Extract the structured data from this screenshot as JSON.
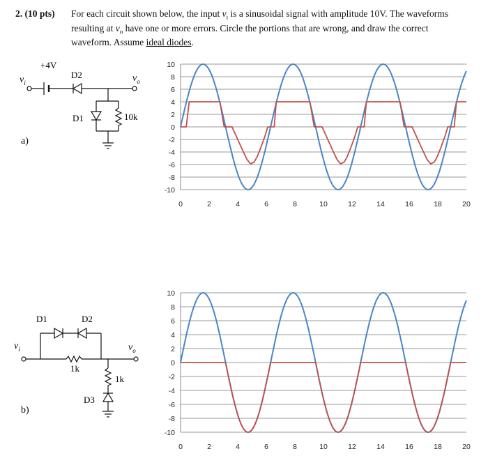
{
  "question": {
    "number": "2.",
    "points": "(10 pts)",
    "line1_a": "For each circuit shown below, the input ",
    "line1_b": " is a sinusoidal signal with amplitude 10V. The waveforms",
    "line2_a": "resulting at ",
    "line2_b": " have one or more errors.  Circle the portions that are wrong, and draw the correct",
    "line3_a": "waveform. Assume ",
    "line3_b": "ideal diodes",
    "line3_c": ".",
    "vi_symbol": "v",
    "vi_sub": "i",
    "vo_symbol": "v",
    "vo_sub": "o"
  },
  "circuit_a": {
    "part_label": "a)",
    "vi": "v",
    "vi_sub": "i",
    "source": "+4V",
    "d2": "D2",
    "d1": "D1",
    "resistor": "10k",
    "vo": "v",
    "vo_sub": "o"
  },
  "circuit_b": {
    "part_label": "b)",
    "vi": "v",
    "vi_sub": "i",
    "d1": "D1",
    "d2": "D2",
    "d3": "D3",
    "r_series": "1k",
    "r_shunt": "1k",
    "vo": "v",
    "vo_sub": "o"
  },
  "colors": {
    "input": "#4a86c5",
    "output": "#c0504d",
    "grid": "#9a9a9a"
  },
  "chart_data": [
    {
      "type": "line",
      "title": "",
      "xlabel": "",
      "ylabel": "",
      "xlim": [
        0,
        20
      ],
      "ylim": [
        -10,
        10
      ],
      "xticks": [
        0,
        2,
        4,
        6,
        8,
        10,
        12,
        14,
        16,
        18,
        20
      ],
      "yticks": [
        10,
        8,
        6,
        4,
        2,
        0,
        -2,
        -4,
        -6,
        -8,
        -10
      ],
      "grid": "horizontal",
      "series": [
        {
          "name": "",
          "color": "#4a86c5",
          "kind": "sine",
          "amplitude": 10,
          "period": 6.3
        },
        {
          "name": "",
          "color": "#c0504d",
          "x": [
            0,
            0.25,
            0.4,
            0.6,
            2.75,
            3.05,
            3.35,
            3.6,
            3.8,
            4.1,
            4.4,
            4.65,
            4.9,
            5.15,
            5.35,
            5.6,
            5.9,
            6.1,
            6.3,
            6.55,
            6.7,
            6.95,
            9.05,
            9.35,
            9.65,
            9.9,
            10.1,
            10.4,
            10.7,
            10.95,
            11.2,
            11.45,
            11.65,
            11.9,
            12.2,
            12.4,
            12.6,
            12.85,
            13.0,
            13.25,
            15.35,
            15.65,
            15.95,
            16.2,
            16.4,
            16.7,
            17.0,
            17.25,
            17.5,
            17.75,
            17.95,
            18.2,
            18.5,
            18.7,
            18.9,
            19.15,
            19.3,
            19.55,
            20
          ],
          "y": [
            0,
            0,
            0,
            4,
            4,
            0,
            0,
            0,
            -1,
            -2.5,
            -4,
            -5.2,
            -5.9,
            -5.6,
            -4.8,
            -3.4,
            -1.5,
            0,
            0,
            0,
            4,
            4,
            4,
            0,
            0,
            0,
            -1,
            -2.5,
            -4,
            -5.2,
            -5.9,
            -5.6,
            -4.8,
            -3.4,
            -1.5,
            0,
            0,
            0,
            4,
            4,
            4,
            0,
            0,
            0,
            -1,
            -2.5,
            -4,
            -5.2,
            -5.9,
            -5.6,
            -4.8,
            -3.4,
            -1.5,
            0,
            0,
            0,
            4,
            4,
            4
          ]
        }
      ]
    },
    {
      "type": "line",
      "title": "",
      "xlabel": "",
      "ylabel": "",
      "xlim": [
        0,
        20
      ],
      "ylim": [
        -10,
        10
      ],
      "xticks": [
        0,
        2,
        4,
        6,
        8,
        10,
        12,
        14,
        16,
        18,
        20
      ],
      "yticks": [
        10,
        8,
        6,
        4,
        2,
        0,
        -2,
        -4,
        -6,
        -8,
        -10
      ],
      "grid": "horizontal",
      "series": [
        {
          "name": "",
          "color": "#4a86c5",
          "kind": "sine",
          "amplitude": 10,
          "period": 6.3
        },
        {
          "name": "",
          "color": "#c0504d",
          "kind": "sine_negative_clip",
          "amplitude": 10,
          "period": 6.3,
          "clip_above": 0
        }
      ]
    }
  ]
}
